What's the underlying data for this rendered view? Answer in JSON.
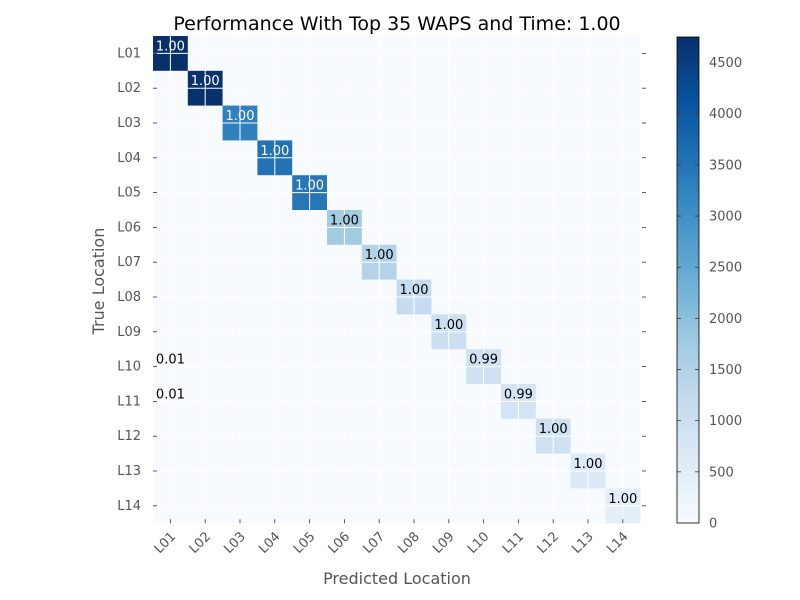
{
  "chart_data": {
    "type": "heatmap",
    "title": "Performance With Top 35 WAPS and Time: 1.00",
    "xlabel": "Predicted Location",
    "ylabel": "True Location",
    "x_categories": [
      "L01",
      "L02",
      "L03",
      "L04",
      "L05",
      "L06",
      "L07",
      "L08",
      "L09",
      "L10",
      "L11",
      "L12",
      "L13",
      "L14"
    ],
    "y_categories": [
      "L01",
      "L02",
      "L03",
      "L04",
      "L05",
      "L06",
      "L07",
      "L08",
      "L09",
      "L10",
      "L11",
      "L12",
      "L13",
      "L14"
    ],
    "diagonal_counts": [
      4750,
      4720,
      3300,
      3550,
      3450,
      1700,
      1450,
      1200,
      1050,
      950,
      850,
      1000,
      650,
      450
    ],
    "off_diagonal": [
      {
        "row": 9,
        "col": 0,
        "count": 10,
        "label": "0.01"
      },
      {
        "row": 10,
        "col": 0,
        "count": 10,
        "label": "0.01"
      }
    ],
    "cell_labels": [
      {
        "row": 0,
        "col": 0,
        "text": "1.00"
      },
      {
        "row": 1,
        "col": 1,
        "text": "1.00"
      },
      {
        "row": 2,
        "col": 2,
        "text": "1.00"
      },
      {
        "row": 3,
        "col": 3,
        "text": "1.00"
      },
      {
        "row": 4,
        "col": 4,
        "text": "1.00"
      },
      {
        "row": 5,
        "col": 5,
        "text": "1.00"
      },
      {
        "row": 6,
        "col": 6,
        "text": "1.00"
      },
      {
        "row": 7,
        "col": 7,
        "text": "1.00"
      },
      {
        "row": 8,
        "col": 8,
        "text": "1.00"
      },
      {
        "row": 9,
        "col": 9,
        "text": "0.99"
      },
      {
        "row": 10,
        "col": 10,
        "text": "0.99"
      },
      {
        "row": 11,
        "col": 11,
        "text": "1.00"
      },
      {
        "row": 12,
        "col": 12,
        "text": "1.00"
      },
      {
        "row": 13,
        "col": 13,
        "text": "1.00"
      },
      {
        "row": 9,
        "col": 0,
        "text": "0.01"
      },
      {
        "row": 10,
        "col": 0,
        "text": "0.01"
      }
    ],
    "colorbar": {
      "min": 0,
      "max": 4750,
      "ticks": [
        0,
        500,
        1000,
        1500,
        2000,
        2500,
        3000,
        3500,
        4000,
        4500
      ],
      "colormap": "Blues"
    },
    "grid": true
  }
}
